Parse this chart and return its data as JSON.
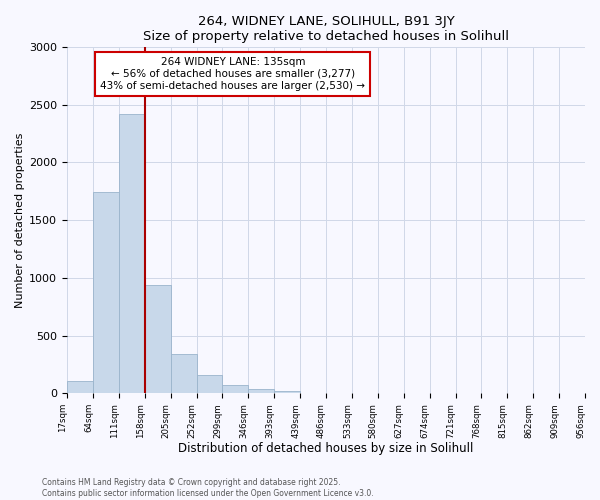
{
  "title": "264, WIDNEY LANE, SOLIHULL, B91 3JY",
  "subtitle": "Size of property relative to detached houses in Solihull",
  "xlabel": "Distribution of detached houses by size in Solihull",
  "ylabel": "Number of detached properties",
  "bar_values": [
    110,
    1740,
    2420,
    940,
    340,
    155,
    75,
    35,
    20,
    0,
    0,
    0,
    0,
    0,
    0,
    0,
    0,
    0,
    0,
    0
  ],
  "categories": [
    "17sqm",
    "64sqm",
    "111sqm",
    "158sqm",
    "205sqm",
    "252sqm",
    "299sqm",
    "346sqm",
    "393sqm",
    "439sqm",
    "486sqm",
    "533sqm",
    "580sqm",
    "627sqm",
    "674sqm",
    "721sqm",
    "768sqm",
    "815sqm",
    "862sqm",
    "909sqm",
    "956sqm"
  ],
  "bar_color": "#c8d8ea",
  "bar_edge_color": "#9ab4cc",
  "vline_color": "#aa0000",
  "ylim": [
    0,
    3000
  ],
  "yticks": [
    0,
    500,
    1000,
    1500,
    2000,
    2500,
    3000
  ],
  "annotation_line1": "264 WIDNEY LANE: 135sqm",
  "annotation_line2": "← 56% of detached houses are smaller (3,277)",
  "annotation_line3": "43% of semi-detached houses are larger (2,530) →",
  "annotation_box_color": "#ffffff",
  "annotation_box_edge_color": "#cc0000",
  "footer_line1": "Contains HM Land Registry data © Crown copyright and database right 2025.",
  "footer_line2": "Contains public sector information licensed under the Open Government Licence v3.0.",
  "bg_color": "#f8f8ff",
  "grid_color": "#d0d8e8"
}
